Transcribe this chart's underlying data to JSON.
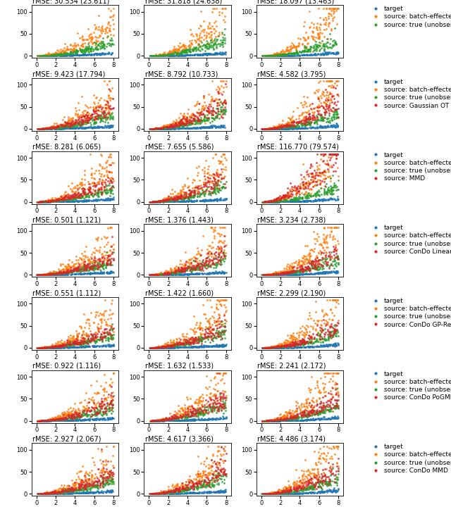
{
  "rows": 7,
  "cols": 3,
  "figsize": [
    6.4,
    7.3
  ],
  "dpi": 100,
  "xlim": [
    -0.5,
    8.5
  ],
  "ylim": [
    -5,
    115
  ],
  "xticks": [
    0,
    2,
    4,
    6,
    8
  ],
  "yticks": [
    0,
    50,
    100
  ],
  "colors": {
    "target": "#1f77b4",
    "batch_effected": "#ff7f0e",
    "true_unobserved": "#2ca02c",
    "red_source": "#d62728"
  },
  "titles": [
    [
      "rMSE: 30.534 (23.611)",
      "rMSE: 31.818 (24.638)",
      "rMSE: 18.097 (13.463)"
    ],
    [
      "rMSE: 9.423 (17.794)",
      "rMSE: 8.792 (10.733)",
      "rMSE: 4.582 (3.795)"
    ],
    [
      "rMSE: 8.281 (6.065)",
      "rMSE: 7.655 (5.586)",
      "rMSE: 116.770 (79.574)"
    ],
    [
      "rMSE: 0.501 (1.121)",
      "rMSE: 1.376 (1.443)",
      "rMSE: 3.234 (2.738)"
    ],
    [
      "rMSE: 0.551 (1.112)",
      "rMSE: 1.422 (1.660)",
      "rMSE: 2.299 (2.190)"
    ],
    [
      "rMSE: 0.922 (1.116)",
      "rMSE: 1.632 (1.533)",
      "rMSE: 2.241 (2.172)"
    ],
    [
      "rMSE: 2.927 (2.067)",
      "rMSE: 4.617 (3.366)",
      "rMSE: 4.486 (3.174)"
    ]
  ],
  "legend_labels": [
    [
      "target",
      "source: batch-effected",
      "source: true (unobserved)"
    ],
    [
      "target",
      "source: batch-effected",
      "source: true (unobserved)",
      "source: Gaussian OT"
    ],
    [
      "target",
      "source: batch-effected",
      "source: true (unobserved)",
      "source: MMD"
    ],
    [
      "target",
      "source: batch-effected",
      "source: true (unobserved)",
      "source: ConDo Linear-ReverseKL"
    ],
    [
      "target",
      "source: batch-effected",
      "source: true (unobserved)",
      "source: ConDo GP-ReverseKL"
    ],
    [
      "target",
      "source: batch-effected",
      "source: true (unobserved)",
      "source: ConDo PoGMM-ReverseKL"
    ],
    [
      "target",
      "source: batch-effected",
      "source: true (unobserved)",
      "source: ConDo MMD"
    ]
  ],
  "has_red": [
    false,
    true,
    true,
    true,
    true,
    true,
    true
  ],
  "title_fontsize": 7,
  "legend_fontsize": 6.5,
  "tick_fontsize": 6,
  "marker_size": 4
}
